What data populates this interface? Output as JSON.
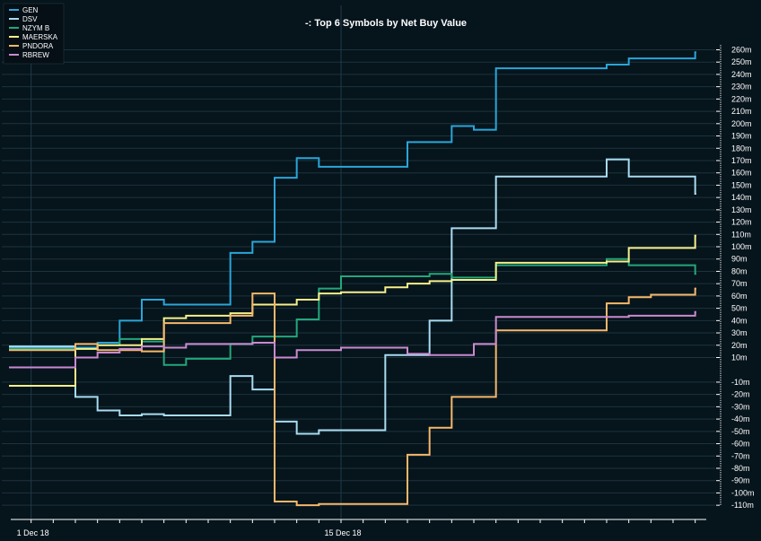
{
  "chart_data": {
    "type": "line",
    "step": true,
    "title": "-: Top 6 Symbols by Net Buy Value",
    "xlabel": "",
    "ylabel": "",
    "x_tick_labels": [
      {
        "label": "1 Dec 18",
        "day": 1
      },
      {
        "label": "15 Dec 18",
        "day": 15
      }
    ],
    "xlim": [
      0,
      31.5
    ],
    "ylim": [
      -115,
      264
    ],
    "y_ticks": [
      -110,
      -100,
      -90,
      -80,
      -70,
      -60,
      -50,
      -40,
      -30,
      -20,
      -10,
      10,
      20,
      30,
      40,
      50,
      60,
      70,
      80,
      90,
      100,
      110,
      120,
      130,
      140,
      150,
      160,
      170,
      180,
      190,
      200,
      210,
      220,
      230,
      240,
      250,
      260
    ],
    "y_unit_suffix": "m",
    "grid": true,
    "legend_position": "top-left",
    "series": [
      {
        "name": "GEN",
        "color": "#29a6d9",
        "points": [
          [
            0,
            18
          ],
          [
            1,
            18
          ],
          [
            2,
            18
          ],
          [
            3,
            18
          ],
          [
            4,
            22
          ],
          [
            5,
            40
          ],
          [
            6,
            57
          ],
          [
            7,
            53
          ],
          [
            8,
            53
          ],
          [
            9,
            53
          ],
          [
            10,
            95
          ],
          [
            11,
            104
          ],
          [
            12,
            156
          ],
          [
            13,
            172
          ],
          [
            14,
            165
          ],
          [
            15,
            165
          ],
          [
            16,
            165
          ],
          [
            17,
            165
          ],
          [
            18,
            185
          ],
          [
            19,
            185
          ],
          [
            20,
            198
          ],
          [
            21,
            195
          ],
          [
            22,
            245
          ],
          [
            23,
            245
          ],
          [
            24,
            245
          ],
          [
            25,
            245
          ],
          [
            26,
            245
          ],
          [
            27,
            248
          ],
          [
            28,
            253
          ],
          [
            29,
            253
          ],
          [
            30,
            253
          ],
          [
            31,
            258
          ]
        ]
      },
      {
        "name": "DSV",
        "color": "#a8dcf0",
        "points": [
          [
            0,
            19
          ],
          [
            1,
            19
          ],
          [
            2,
            19
          ],
          [
            3,
            -22
          ],
          [
            4,
            -33
          ],
          [
            5,
            -37
          ],
          [
            6,
            -36
          ],
          [
            7,
            -37
          ],
          [
            8,
            -37
          ],
          [
            9,
            -37
          ],
          [
            10,
            -5
          ],
          [
            11,
            -16
          ],
          [
            12,
            -42
          ],
          [
            13,
            -52
          ],
          [
            14,
            -49
          ],
          [
            15,
            -49
          ],
          [
            16,
            -49
          ],
          [
            17,
            12
          ],
          [
            18,
            12
          ],
          [
            19,
            40
          ],
          [
            20,
            115
          ],
          [
            21,
            115
          ],
          [
            22,
            157
          ],
          [
            23,
            157
          ],
          [
            24,
            157
          ],
          [
            25,
            157
          ],
          [
            26,
            157
          ],
          [
            27,
            171
          ],
          [
            28,
            157
          ],
          [
            29,
            157
          ],
          [
            30,
            157
          ],
          [
            31,
            143
          ]
        ]
      },
      {
        "name": "NZYM B",
        "color": "#22a87a",
        "points": [
          [
            0,
            17
          ],
          [
            1,
            17
          ],
          [
            2,
            17
          ],
          [
            3,
            17
          ],
          [
            4,
            20
          ],
          [
            5,
            25
          ],
          [
            6,
            23
          ],
          [
            7,
            4
          ],
          [
            8,
            9
          ],
          [
            9,
            9
          ],
          [
            10,
            21
          ],
          [
            11,
            27
          ],
          [
            12,
            27
          ],
          [
            13,
            41
          ],
          [
            14,
            66
          ],
          [
            15,
            76
          ],
          [
            16,
            76
          ],
          [
            17,
            76
          ],
          [
            18,
            76
          ],
          [
            19,
            78
          ],
          [
            20,
            75
          ],
          [
            21,
            75
          ],
          [
            22,
            85
          ],
          [
            23,
            85
          ],
          [
            24,
            85
          ],
          [
            25,
            85
          ],
          [
            26,
            85
          ],
          [
            27,
            90
          ],
          [
            28,
            85
          ],
          [
            29,
            85
          ],
          [
            30,
            85
          ],
          [
            31,
            78
          ]
        ]
      },
      {
        "name": "MAERSKA",
        "color": "#f5f08a",
        "points": [
          [
            0,
            -13
          ],
          [
            1,
            -13
          ],
          [
            2,
            -13
          ],
          [
            3,
            17
          ],
          [
            4,
            20
          ],
          [
            5,
            20
          ],
          [
            6,
            25
          ],
          [
            7,
            42
          ],
          [
            8,
            44
          ],
          [
            9,
            44
          ],
          [
            10,
            46
          ],
          [
            11,
            53
          ],
          [
            12,
            53
          ],
          [
            13,
            57
          ],
          [
            14,
            62
          ],
          [
            15,
            63
          ],
          [
            16,
            63
          ],
          [
            17,
            67
          ],
          [
            18,
            70
          ],
          [
            19,
            72
          ],
          [
            20,
            73
          ],
          [
            21,
            73
          ],
          [
            22,
            87
          ],
          [
            23,
            87
          ],
          [
            24,
            87
          ],
          [
            25,
            87
          ],
          [
            26,
            87
          ],
          [
            27,
            88
          ],
          [
            28,
            99
          ],
          [
            29,
            99
          ],
          [
            30,
            99
          ],
          [
            31,
            109
          ]
        ]
      },
      {
        "name": "PNDORA",
        "color": "#f5b86a",
        "points": [
          [
            0,
            16
          ],
          [
            1,
            16
          ],
          [
            2,
            16
          ],
          [
            3,
            21
          ],
          [
            4,
            16
          ],
          [
            5,
            16
          ],
          [
            6,
            15
          ],
          [
            7,
            38
          ],
          [
            8,
            38
          ],
          [
            9,
            38
          ],
          [
            10,
            44
          ],
          [
            11,
            62
          ],
          [
            12,
            -107
          ],
          [
            13,
            -110
          ],
          [
            14,
            -109
          ],
          [
            15,
            -109
          ],
          [
            16,
            -109
          ],
          [
            17,
            -109
          ],
          [
            18,
            -69
          ],
          [
            19,
            -47
          ],
          [
            20,
            -22
          ],
          [
            21,
            -22
          ],
          [
            22,
            32
          ],
          [
            23,
            32
          ],
          [
            24,
            32
          ],
          [
            25,
            32
          ],
          [
            26,
            32
          ],
          [
            27,
            54
          ],
          [
            28,
            59
          ],
          [
            29,
            61
          ],
          [
            30,
            61
          ],
          [
            31,
            66
          ]
        ]
      },
      {
        "name": "RBREW",
        "color": "#c98ad0",
        "points": [
          [
            0,
            2
          ],
          [
            1,
            2
          ],
          [
            2,
            2
          ],
          [
            3,
            10
          ],
          [
            4,
            14
          ],
          [
            5,
            17
          ],
          [
            6,
            19
          ],
          [
            7,
            18
          ],
          [
            8,
            21
          ],
          [
            9,
            21
          ],
          [
            10,
            21
          ],
          [
            11,
            22
          ],
          [
            12,
            10
          ],
          [
            13,
            16
          ],
          [
            14,
            16
          ],
          [
            15,
            18
          ],
          [
            16,
            18
          ],
          [
            17,
            18
          ],
          [
            18,
            13
          ],
          [
            19,
            12
          ],
          [
            20,
            12
          ],
          [
            21,
            21
          ],
          [
            22,
            43
          ],
          [
            23,
            43
          ],
          [
            24,
            43
          ],
          [
            25,
            43
          ],
          [
            26,
            43
          ],
          [
            27,
            43
          ],
          [
            28,
            44
          ],
          [
            29,
            44
          ],
          [
            30,
            44
          ],
          [
            31,
            47
          ]
        ]
      }
    ]
  }
}
